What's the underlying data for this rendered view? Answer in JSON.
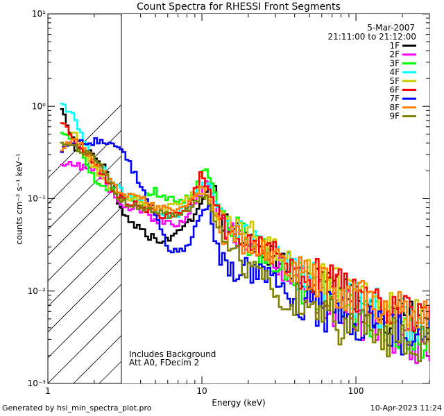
{
  "chart_data": {
    "type": "line",
    "title": "Count Spectra for RHESSI Front Segments",
    "xlabel": "Energy (keV)",
    "ylabel": "counts cm⁻² s⁻¹ keV⁻¹",
    "xscale": "log",
    "yscale": "log",
    "xlim": [
      1,
      300
    ],
    "ylim": [
      0.001,
      10
    ],
    "x_ticks": [
      {
        "value": 1,
        "label": "1"
      },
      {
        "value": 10,
        "label": "10"
      },
      {
        "value": 100,
        "label": "100"
      }
    ],
    "y_ticks": [
      {
        "value": 10,
        "label": "10¹"
      },
      {
        "value": 1,
        "label": "10⁰"
      },
      {
        "value": 0.1,
        "label": "10⁻¹"
      },
      {
        "value": 0.01,
        "label": "10⁻²"
      },
      {
        "value": 0.001,
        "label": "10⁻³"
      }
    ],
    "excluded_region": {
      "from": 1,
      "to": 3
    },
    "date_text": "5-Mar-2007",
    "time_text": "21:11:00 to 21:12:00",
    "annotations": [
      "Includes Background",
      "Att A0, FDecim 2"
    ],
    "series": [
      {
        "name": "1F",
        "color": "#000000",
        "points": [
          [
            1.2,
            1.15
          ],
          [
            1.5,
            0.36
          ],
          [
            2,
            0.3
          ],
          [
            2.5,
            0.18
          ],
          [
            3,
            0.075
          ],
          [
            4,
            0.045
          ],
          [
            5,
            0.036
          ],
          [
            6,
            0.035
          ],
          [
            7,
            0.045
          ],
          [
            8,
            0.052
          ],
          [
            9,
            0.065
          ],
          [
            10,
            0.1
          ],
          [
            11,
            0.12
          ],
          [
            12,
            0.14
          ],
          [
            13,
            0.07
          ],
          [
            15,
            0.048
          ],
          [
            20,
            0.035
          ],
          [
            25,
            0.028
          ],
          [
            30,
            0.024
          ],
          [
            40,
            0.017
          ],
          [
            50,
            0.012
          ],
          [
            70,
            0.009
          ],
          [
            100,
            0.0075
          ],
          [
            150,
            0.0058
          ],
          [
            200,
            0.0048
          ],
          [
            250,
            0.0042
          ],
          [
            300,
            0.004
          ]
        ]
      },
      {
        "name": "2F",
        "color": "#ff00ff",
        "points": [
          [
            1.2,
            0.24
          ],
          [
            1.5,
            0.23
          ],
          [
            2,
            0.22
          ],
          [
            2.5,
            0.13
          ],
          [
            3,
            0.085
          ],
          [
            4,
            0.075
          ],
          [
            5,
            0.06
          ],
          [
            6,
            0.055
          ],
          [
            7,
            0.05
          ],
          [
            8,
            0.06
          ],
          [
            9,
            0.09
          ],
          [
            10,
            0.12
          ],
          [
            11,
            0.15
          ],
          [
            12,
            0.1
          ],
          [
            13,
            0.06
          ],
          [
            15,
            0.045
          ],
          [
            20,
            0.03
          ],
          [
            25,
            0.022
          ],
          [
            30,
            0.018
          ],
          [
            40,
            0.013
          ],
          [
            50,
            0.01
          ],
          [
            70,
            0.007
          ],
          [
            100,
            0.0052
          ],
          [
            150,
            0.004
          ],
          [
            200,
            0.0033
          ],
          [
            250,
            0.0028
          ],
          [
            300,
            0.0025
          ]
        ]
      },
      {
        "name": "3F",
        "color": "#00ff00",
        "points": [
          [
            1.2,
            0.55
          ],
          [
            1.5,
            0.45
          ],
          [
            2,
            0.16
          ],
          [
            2.5,
            0.13
          ],
          [
            3,
            0.1
          ],
          [
            4,
            0.1
          ],
          [
            5,
            0.12
          ],
          [
            6,
            0.1
          ],
          [
            7,
            0.09
          ],
          [
            8,
            0.1
          ],
          [
            9,
            0.12
          ],
          [
            10,
            0.18
          ],
          [
            11,
            0.2
          ],
          [
            12,
            0.12
          ],
          [
            13,
            0.08
          ],
          [
            15,
            0.055
          ],
          [
            20,
            0.035
          ],
          [
            25,
            0.026
          ],
          [
            30,
            0.021
          ],
          [
            40,
            0.015
          ],
          [
            50,
            0.011
          ],
          [
            70,
            0.008
          ],
          [
            100,
            0.006
          ],
          [
            150,
            0.0046
          ],
          [
            200,
            0.0038
          ],
          [
            250,
            0.0033
          ],
          [
            300,
            0.003
          ]
        ]
      },
      {
        "name": "4F",
        "color": "#00ffff",
        "points": [
          [
            1.2,
            1.2
          ],
          [
            1.5,
            0.75
          ],
          [
            2,
            0.26
          ],
          [
            2.5,
            0.17
          ],
          [
            3,
            0.12
          ],
          [
            4,
            0.09
          ],
          [
            5,
            0.08
          ],
          [
            6,
            0.065
          ],
          [
            7,
            0.07
          ],
          [
            8,
            0.08
          ],
          [
            9,
            0.1
          ],
          [
            10,
            0.13
          ],
          [
            11,
            0.16
          ],
          [
            12,
            0.1
          ],
          [
            13,
            0.07
          ],
          [
            15,
            0.05
          ],
          [
            20,
            0.038
          ],
          [
            25,
            0.03
          ],
          [
            30,
            0.025
          ],
          [
            40,
            0.018
          ],
          [
            50,
            0.013
          ],
          [
            70,
            0.01
          ],
          [
            100,
            0.0075
          ],
          [
            150,
            0.006
          ],
          [
            200,
            0.005
          ],
          [
            250,
            0.0045
          ],
          [
            300,
            0.0042
          ]
        ]
      },
      {
        "name": "5F",
        "color": "#cccc00",
        "points": [
          [
            1.2,
            0.33
          ],
          [
            1.5,
            0.5
          ],
          [
            2,
            0.21
          ],
          [
            2.5,
            0.14
          ],
          [
            3,
            0.1
          ],
          [
            4,
            0.09
          ],
          [
            5,
            0.075
          ],
          [
            6,
            0.08
          ],
          [
            7,
            0.09
          ],
          [
            8,
            0.1
          ],
          [
            9,
            0.11
          ],
          [
            10,
            0.12
          ],
          [
            11,
            0.1
          ],
          [
            12,
            0.07
          ],
          [
            13,
            0.06
          ],
          [
            15,
            0.055
          ],
          [
            20,
            0.045
          ],
          [
            25,
            0.035
          ],
          [
            30,
            0.028
          ],
          [
            40,
            0.02
          ],
          [
            50,
            0.015
          ],
          [
            70,
            0.011
          ],
          [
            100,
            0.0085
          ],
          [
            150,
            0.0068
          ],
          [
            200,
            0.0058
          ],
          [
            250,
            0.005
          ],
          [
            300,
            0.0045
          ]
        ]
      },
      {
        "name": "6F",
        "color": "#ff0000",
        "points": [
          [
            1.2,
            0.72
          ],
          [
            1.5,
            0.42
          ],
          [
            2,
            0.26
          ],
          [
            2.5,
            0.14
          ],
          [
            3,
            0.1
          ],
          [
            4,
            0.08
          ],
          [
            5,
            0.07
          ],
          [
            6,
            0.065
          ],
          [
            7,
            0.07
          ],
          [
            8,
            0.08
          ],
          [
            9,
            0.12
          ],
          [
            10,
            0.19
          ],
          [
            11,
            0.13
          ],
          [
            12,
            0.085
          ],
          [
            13,
            0.06
          ],
          [
            15,
            0.045
          ],
          [
            20,
            0.035
          ],
          [
            25,
            0.028
          ],
          [
            30,
            0.024
          ],
          [
            40,
            0.018
          ],
          [
            50,
            0.014
          ],
          [
            70,
            0.011
          ],
          [
            100,
            0.0085
          ],
          [
            150,
            0.007
          ],
          [
            200,
            0.006
          ],
          [
            250,
            0.0052
          ],
          [
            300,
            0.0048
          ]
        ]
      },
      {
        "name": "7F",
        "color": "#0000ff",
        "points": [
          [
            1.2,
            0.33
          ],
          [
            1.5,
            0.4
          ],
          [
            2,
            0.42
          ],
          [
            2.5,
            0.4
          ],
          [
            3,
            0.36
          ],
          [
            4,
            0.14
          ],
          [
            5,
            0.07
          ],
          [
            6,
            0.03
          ],
          [
            7,
            0.025
          ],
          [
            8,
            0.03
          ],
          [
            9,
            0.045
          ],
          [
            10,
            0.07
          ],
          [
            11,
            0.09
          ],
          [
            12,
            0.04
          ],
          [
            13,
            0.02
          ],
          [
            15,
            0.018
          ],
          [
            20,
            0.016
          ],
          [
            25,
            0.014
          ],
          [
            30,
            0.012
          ],
          [
            40,
            0.009
          ],
          [
            50,
            0.007
          ],
          [
            70,
            0.0055
          ],
          [
            100,
            0.0045
          ],
          [
            150,
            0.0038
          ],
          [
            200,
            0.0033
          ],
          [
            250,
            0.003
          ],
          [
            300,
            0.0028
          ]
        ]
      },
      {
        "name": "8F",
        "color": "#ff8000",
        "points": [
          [
            1.2,
            0.35
          ],
          [
            1.5,
            0.48
          ],
          [
            2,
            0.25
          ],
          [
            2.5,
            0.17
          ],
          [
            3,
            0.11
          ],
          [
            4,
            0.1
          ],
          [
            5,
            0.08
          ],
          [
            6,
            0.075
          ],
          [
            7,
            0.08
          ],
          [
            8,
            0.09
          ],
          [
            9,
            0.1
          ],
          [
            10,
            0.13
          ],
          [
            11,
            0.11
          ],
          [
            12,
            0.07
          ],
          [
            13,
            0.05
          ],
          [
            15,
            0.04
          ],
          [
            20,
            0.032
          ],
          [
            25,
            0.026
          ],
          [
            30,
            0.022
          ],
          [
            40,
            0.017
          ],
          [
            50,
            0.013
          ],
          [
            70,
            0.01
          ],
          [
            100,
            0.008
          ],
          [
            150,
            0.0065
          ],
          [
            200,
            0.0058
          ],
          [
            250,
            0.005
          ],
          [
            300,
            0.0045
          ]
        ]
      },
      {
        "name": "9F",
        "color": "#808000",
        "points": [
          [
            1.2,
            0.42
          ],
          [
            1.5,
            0.36
          ],
          [
            2,
            0.3
          ],
          [
            2.5,
            0.15
          ],
          [
            3,
            0.09
          ],
          [
            4,
            0.08
          ],
          [
            5,
            0.07
          ],
          [
            6,
            0.065
          ],
          [
            7,
            0.07
          ],
          [
            8,
            0.075
          ],
          [
            9,
            0.09
          ],
          [
            10,
            0.11
          ],
          [
            11,
            0.1
          ],
          [
            12,
            0.06
          ],
          [
            13,
            0.04
          ],
          [
            15,
            0.028
          ],
          [
            20,
            0.018
          ],
          [
            25,
            0.013
          ],
          [
            30,
            0.01
          ],
          [
            40,
            0.0075
          ],
          [
            50,
            0.006
          ],
          [
            70,
            0.0048
          ],
          [
            100,
            0.004
          ],
          [
            150,
            0.0034
          ],
          [
            200,
            0.003
          ],
          [
            250,
            0.0028
          ],
          [
            300,
            0.0026
          ]
        ]
      }
    ]
  },
  "footer": {
    "generated_by": "Generated by hsi_min_spectra_plot.pro",
    "timestamp": "10-Apr-2023 11:24"
  }
}
